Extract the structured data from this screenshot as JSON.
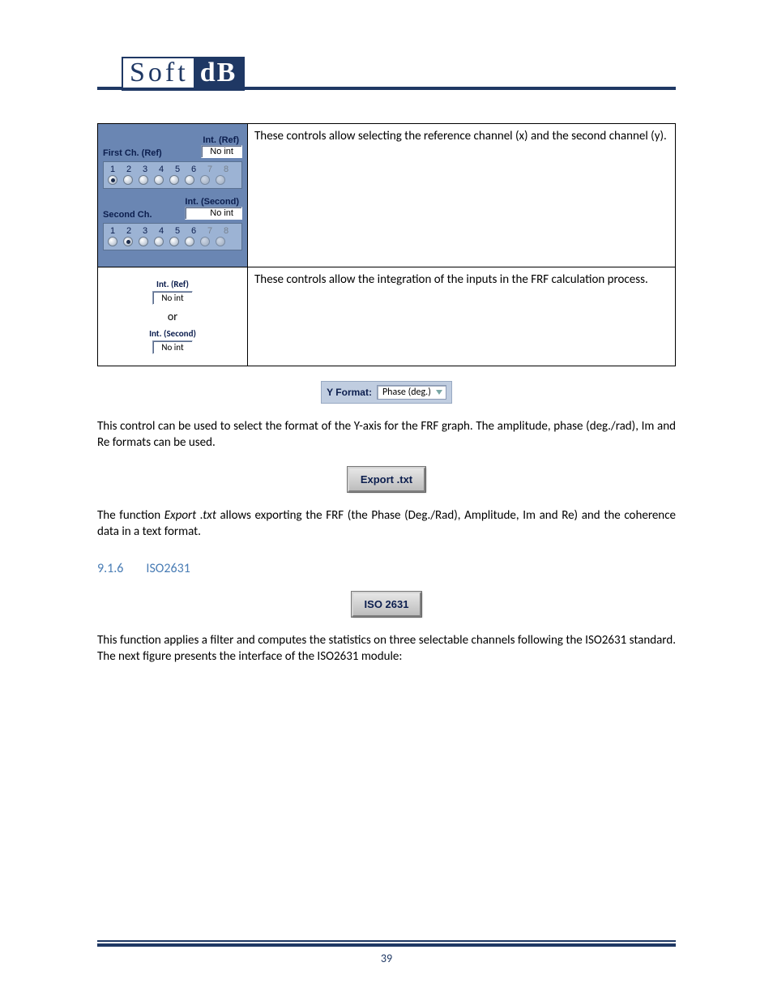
{
  "logo": {
    "left": "Soft",
    "right": "dB"
  },
  "colors": {
    "brand_navy": "#1f3864",
    "panel_blue": "#6a86b3",
    "strip_blue": "#9cb3d4",
    "heading_blue": "#4a7db5"
  },
  "table": {
    "row1": {
      "ui": {
        "int_ref_label": "Int. (Ref)",
        "noint_ref": "No int",
        "first_ch_label": "First Ch. (Ref)",
        "int_second_label": "Int. (Second)",
        "noint_second": "No int",
        "second_ch_label": "Second Ch.",
        "channels": [
          "1",
          "2",
          "3",
          "4",
          "5",
          "6",
          "7",
          "8"
        ],
        "first_selected_index": 0,
        "second_selected_index": 1,
        "disabled_from_index": 6
      },
      "desc": "These controls allow selecting the reference channel (x) and the second channel (y)."
    },
    "row2": {
      "ui": {
        "int_ref_label": "Int. (Ref)",
        "noint_ref": "No int",
        "or": "or",
        "int_second_label": "Int. (Second)",
        "noint_second": "No int"
      },
      "desc": "These controls allow the integration of the inputs in the FRF calculation process."
    }
  },
  "yformat": {
    "label": "Y Format:",
    "value": "Phase (deg.)"
  },
  "paragraph_yformat": "This control can be used to select the format of the Y-axis for the FRF graph. The amplitude, phase (deg./rad), Im and Re formats can be used.",
  "export_button": "Export .txt",
  "paragraph_export_pre": "The function ",
  "paragraph_export_em": "Export .txt",
  "paragraph_export_post": " allows exporting the FRF (the Phase (Deg./Rad), Amplitude, Im and Re) and the coherence data in a text format.",
  "section": {
    "number": "9.1.6",
    "title": "ISO2631"
  },
  "iso_button": "ISO 2631",
  "paragraph_iso": "This function applies a filter and computes the statistics on three selectable channels following the ISO2631 standard. The next figure presents the interface of the ISO2631 module:",
  "page_number": "39"
}
